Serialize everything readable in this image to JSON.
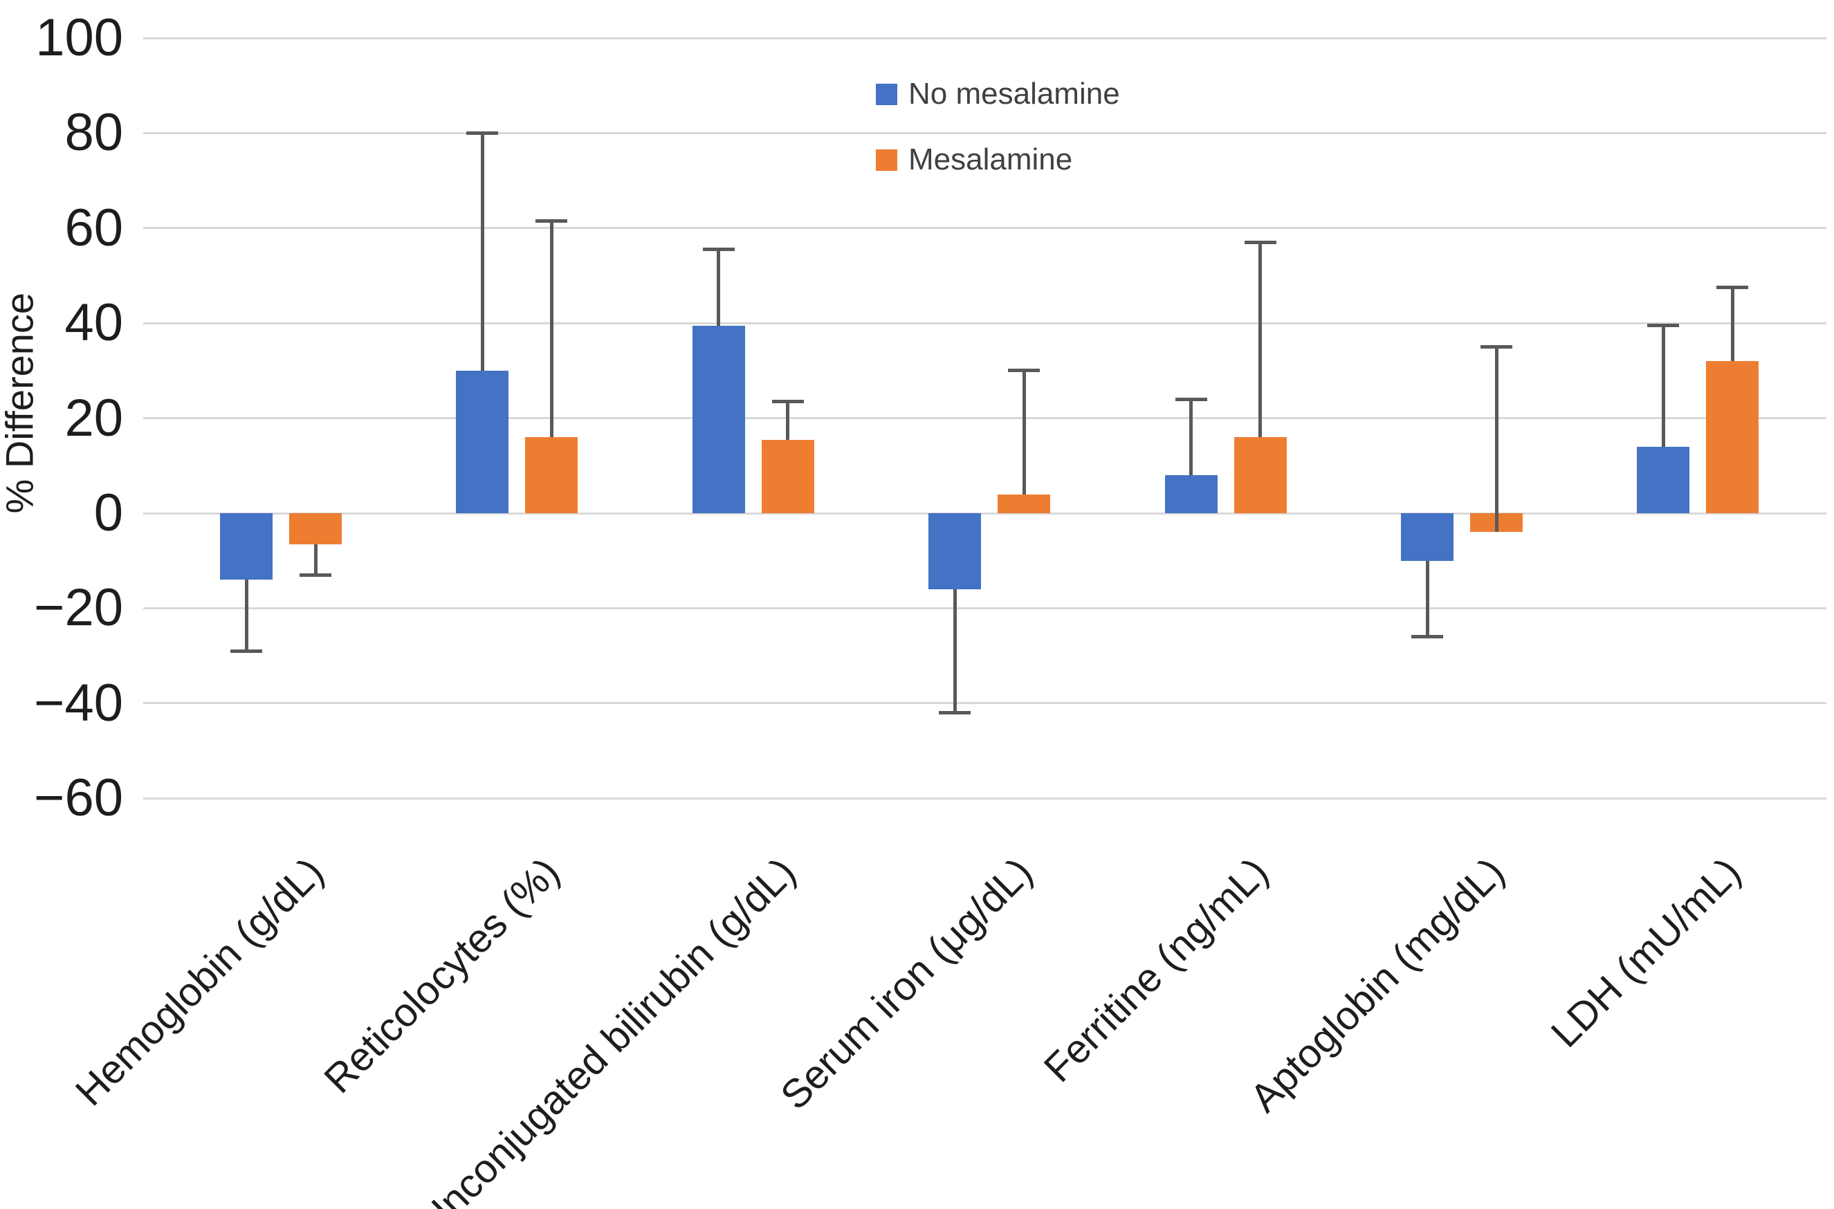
{
  "chart_data": {
    "type": "bar",
    "title": "",
    "ylabel": "% Difference",
    "xlabel": "",
    "ylim": [
      -60,
      100
    ],
    "yticks": [
      100,
      80,
      60,
      40,
      20,
      0,
      -20,
      -40,
      -60
    ],
    "ytick_labels": [
      "100",
      "80",
      "60",
      "40",
      "20",
      "0",
      "−20",
      "−40",
      "−60"
    ],
    "categories": [
      "Hemoglobin (g/dL)",
      "Reticolocytes (%)",
      "Unconjugated bilirubin (g/dL)",
      "Serum iron (μg/dL)",
      "Ferritine (ng/mL)",
      "Aptoglobin (mg/dL)",
      "LDH (mU/mL)"
    ],
    "series": [
      {
        "name": "No mesalamine",
        "color": "#4472C4",
        "values": [
          -14,
          30,
          39.5,
          -16,
          8,
          -10,
          14
        ],
        "error_whisker_to": [
          -29,
          80,
          55.5,
          -42,
          24,
          -26,
          39.5
        ]
      },
      {
        "name": "Mesalamine",
        "color": "#ED7D31",
        "values": [
          -6.5,
          16,
          15.5,
          4,
          16,
          -4,
          32
        ],
        "error_whisker_to": [
          -13,
          61.5,
          23.5,
          30,
          57,
          35,
          47.5
        ]
      }
    ],
    "grid": true,
    "gridline_color": "#D8D8D8",
    "error_bar_color": "#595959",
    "legend_position": "top-center",
    "background": "#FFFFFF"
  }
}
